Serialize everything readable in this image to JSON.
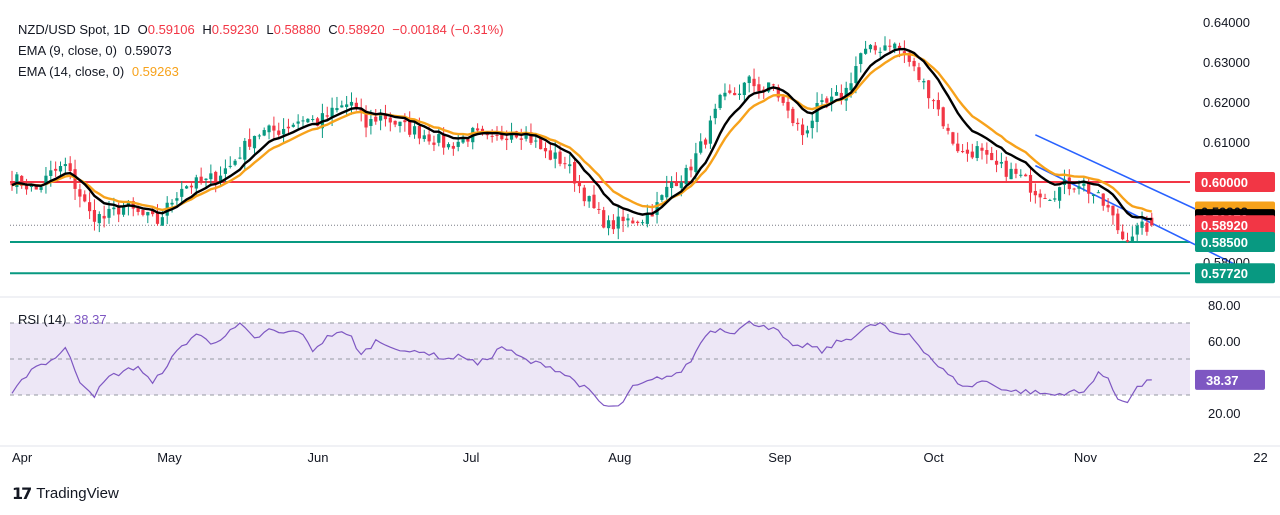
{
  "legend": {
    "symbol": "NZD/USD Spot, 1D",
    "o_label": "O",
    "o": "0.59106",
    "h_label": "H",
    "h": "0.59230",
    "l_label": "L",
    "l": "0.58880",
    "c_label": "C",
    "c": "0.58920",
    "change": "−0.00184 (−0.31%)",
    "ema9_label": "EMA (9, close, 0)",
    "ema9": "0.59073",
    "ema14_label": "EMA (14, close, 0)",
    "ema14": "0.59263",
    "rsi_label": "RSI (14)",
    "rsi": "38.37"
  },
  "colors": {
    "up": "#089981",
    "down": "#f23645",
    "ema9": "#000000",
    "ema14": "#f7a21b",
    "resistance": "#f23645",
    "support": "#089981",
    "channel": "#2962ff",
    "rsi": "#7e57c2",
    "rsi_band": "#ede7f6"
  },
  "chart_data": {
    "type": "candlestick",
    "title": "NZD/USD Spot, 1D",
    "ylim": [
      0.5745,
      0.64
    ],
    "yticks": [
      "0.64000",
      "0.63000",
      "0.62000",
      "0.61000",
      "0.58000"
    ],
    "xticks": [
      "Apr",
      "May",
      "Jun",
      "Jul",
      "Aug",
      "Sep",
      "Oct",
      "Nov",
      "22"
    ],
    "price_labels": [
      {
        "text": "0.60000",
        "value": 0.6,
        "color": "#f23645",
        "text_color": "#ffffff"
      },
      {
        "text": "0.59263",
        "value": 0.59263,
        "color": "#f7a21b",
        "text_color": "#131722"
      },
      {
        "text": "0.59073",
        "value": 0.59073,
        "color": "#000000",
        "text_color": "#ffffff"
      },
      {
        "text": "0.58920",
        "value": 0.5892,
        "color": "#f23645",
        "text_color": "#ffffff"
      },
      {
        "text": "0.58500",
        "value": 0.585,
        "color": "#089981",
        "text_color": "#ffffff"
      },
      {
        "text": "0.57720",
        "value": 0.5772,
        "color": "#089981",
        "text_color": "#ffffff"
      }
    ],
    "horizontal_lines": [
      {
        "name": "resistance",
        "value": 0.6
      },
      {
        "name": "support-1",
        "value": 0.585
      },
      {
        "name": "support-2",
        "value": 0.5772
      }
    ],
    "close_anchors": [
      [
        0,
        0.601
      ],
      [
        5,
        0.598
      ],
      [
        8,
        0.602
      ],
      [
        11,
        0.604
      ],
      [
        16,
        0.592
      ],
      [
        19,
        0.591
      ],
      [
        23,
        0.594
      ],
      [
        26,
        0.592
      ],
      [
        30,
        0.59
      ],
      [
        35,
        0.599
      ],
      [
        40,
        0.6
      ],
      [
        45,
        0.604
      ],
      [
        50,
        0.612
      ],
      [
        55,
        0.613
      ],
      [
        60,
        0.616
      ],
      [
        63,
        0.615
      ],
      [
        67,
        0.618
      ],
      [
        70,
        0.62
      ],
      [
        73,
        0.614
      ],
      [
        76,
        0.617
      ],
      [
        80,
        0.614
      ],
      [
        85,
        0.612
      ],
      [
        90,
        0.609
      ],
      [
        95,
        0.612
      ],
      [
        99,
        0.61
      ],
      [
        103,
        0.613
      ],
      [
        106,
        0.612
      ],
      [
        110,
        0.607
      ],
      [
        114,
        0.605
      ],
      [
        117,
        0.599
      ],
      [
        120,
        0.593
      ],
      [
        123,
        0.589
      ],
      [
        126,
        0.59
      ],
      [
        130,
        0.591
      ],
      [
        133,
        0.594
      ],
      [
        136,
        0.6
      ],
      [
        139,
        0.602
      ],
      [
        143,
        0.611
      ],
      [
        146,
        0.62
      ],
      [
        149,
        0.622
      ],
      [
        152,
        0.625
      ],
      [
        155,
        0.623
      ],
      [
        157,
        0.624
      ],
      [
        160,
        0.617
      ],
      [
        163,
        0.612
      ],
      [
        166,
        0.618
      ],
      [
        169,
        0.62
      ],
      [
        172,
        0.623
      ],
      [
        175,
        0.632
      ],
      [
        178,
        0.633
      ],
      [
        181,
        0.635
      ],
      [
        184,
        0.632
      ],
      [
        187,
        0.626
      ],
      [
        190,
        0.621
      ],
      [
        193,
        0.612
      ],
      [
        196,
        0.607
      ],
      [
        199,
        0.608
      ],
      [
        202,
        0.604
      ],
      [
        205,
        0.603
      ],
      [
        208,
        0.601
      ],
      [
        211,
        0.598
      ],
      [
        214,
        0.597
      ],
      [
        217,
        0.599
      ],
      [
        220,
        0.6
      ],
      [
        223,
        0.597
      ],
      [
        226,
        0.593
      ],
      [
        229,
        0.586
      ],
      [
        232,
        0.588
      ],
      [
        235,
        0.5892
      ]
    ],
    "ema9_last": 0.59073,
    "ema14_last": 0.59263,
    "channel": {
      "upper": [
        [
          211,
          0.6118
        ],
        [
          256,
          0.5865
        ]
      ],
      "lower": [
        [
          211,
          0.6041
        ],
        [
          256,
          0.5771
        ]
      ]
    },
    "rsi": {
      "ylim": [
        13,
        84
      ],
      "yticks": [
        "80.00",
        "60.00",
        "20.00"
      ],
      "bands": [
        70,
        50,
        30
      ],
      "anchors": [
        [
          0,
          30
        ],
        [
          4,
          45
        ],
        [
          8,
          49
        ],
        [
          11,
          56
        ],
        [
          14,
          38
        ],
        [
          17,
          30
        ],
        [
          20,
          40
        ],
        [
          23,
          43
        ],
        [
          26,
          46
        ],
        [
          29,
          36
        ],
        [
          32,
          47
        ],
        [
          35,
          57
        ],
        [
          38,
          64
        ],
        [
          41,
          59
        ],
        [
          44,
          63
        ],
        [
          47,
          69
        ],
        [
          50,
          61
        ],
        [
          53,
          66
        ],
        [
          56,
          64
        ],
        [
          59,
          66
        ],
        [
          62,
          55
        ],
        [
          65,
          62
        ],
        [
          67,
          65
        ],
        [
          70,
          62
        ],
        [
          72,
          52
        ],
        [
          75,
          60
        ],
        [
          78,
          58
        ],
        [
          81,
          53
        ],
        [
          84,
          55
        ],
        [
          87,
          52
        ],
        [
          90,
          50
        ],
        [
          93,
          52
        ],
        [
          96,
          47
        ],
        [
          99,
          52
        ],
        [
          101,
          57
        ],
        [
          104,
          52
        ],
        [
          107,
          48
        ],
        [
          110,
          47
        ],
        [
          113,
          43
        ],
        [
          116,
          38
        ],
        [
          119,
          32
        ],
        [
          122,
          24
        ],
        [
          125,
          23
        ],
        [
          128,
          34
        ],
        [
          131,
          37
        ],
        [
          134,
          40
        ],
        [
          137,
          41
        ],
        [
          140,
          49
        ],
        [
          143,
          64
        ],
        [
          146,
          67
        ],
        [
          149,
          65
        ],
        [
          152,
          70
        ],
        [
          155,
          69
        ],
        [
          158,
          65
        ],
        [
          161,
          56
        ],
        [
          164,
          58
        ],
        [
          167,
          54
        ],
        [
          170,
          59
        ],
        [
          173,
          62
        ],
        [
          176,
          67
        ],
        [
          179,
          70
        ],
        [
          182,
          63
        ],
        [
          185,
          64
        ],
        [
          188,
          55
        ],
        [
          191,
          46
        ],
        [
          194,
          39
        ],
        [
          197,
          34
        ],
        [
          200,
          38
        ],
        [
          203,
          35
        ],
        [
          206,
          32
        ],
        [
          209,
          32
        ],
        [
          212,
          31
        ],
        [
          215,
          30
        ],
        [
          218,
          32
        ],
        [
          221,
          31
        ],
        [
          224,
          43
        ],
        [
          226,
          38
        ],
        [
          228,
          28
        ],
        [
          230,
          27
        ],
        [
          232,
          34
        ],
        [
          235,
          38.37
        ]
      ],
      "last": 38.37
    }
  },
  "footer": {
    "brand": "TradingView",
    "logo_mark": "17"
  }
}
